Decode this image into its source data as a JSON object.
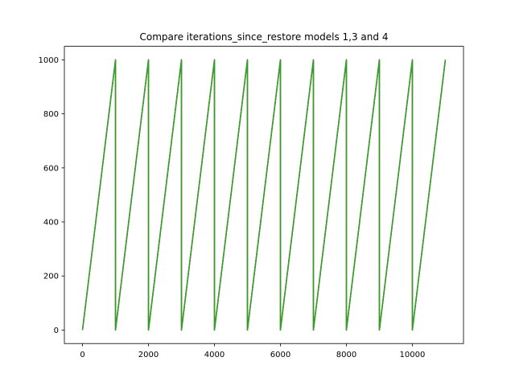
{
  "chart_data": {
    "type": "line",
    "title": "Compare iterations_since_restore models 1,3 and 4",
    "xlabel": "",
    "ylabel": "",
    "xlim": [
      -550,
      11550
    ],
    "ylim": [
      -50,
      1050
    ],
    "xticks": [
      0,
      2000,
      4000,
      6000,
      8000,
      10000
    ],
    "xtick_labels": [
      "0",
      "2000",
      "4000",
      "6000",
      "8000",
      "10000"
    ],
    "yticks": [
      0,
      200,
      400,
      600,
      800,
      1000
    ],
    "ytick_labels": [
      "0",
      "200",
      "400",
      "600",
      "800",
      "1000"
    ],
    "grid": false,
    "legend": "none",
    "series": [
      {
        "color": "#1f77b4",
        "x": [
          0,
          1000,
          1000,
          2000,
          2000,
          3000,
          3000,
          4000,
          4000,
          5000,
          5000,
          6000,
          6000,
          7000,
          7000,
          8000,
          8000,
          9000,
          9000,
          10000,
          10000,
          11000
        ],
        "y": [
          0,
          1000,
          0,
          1000,
          0,
          1000,
          0,
          1000,
          0,
          1000,
          0,
          1000,
          0,
          1000,
          0,
          1000,
          0,
          1000,
          0,
          1000,
          0,
          1000
        ]
      },
      {
        "color": "#ff7f0e",
        "x": [
          0,
          1000,
          1000,
          2000,
          2000,
          3000,
          3000,
          4000,
          4000,
          5000,
          5000,
          6000,
          6000,
          7000,
          7000,
          8000,
          8000,
          9000,
          9000,
          10000,
          10000,
          11000
        ],
        "y": [
          0,
          1000,
          0,
          1000,
          0,
          1000,
          0,
          1000,
          0,
          1000,
          0,
          1000,
          0,
          1000,
          0,
          1000,
          0,
          1000,
          0,
          1000,
          0,
          1000
        ]
      },
      {
        "color": "#2ca02c",
        "x": [
          0,
          1000,
          1000,
          2000,
          2000,
          3000,
          3000,
          4000,
          4000,
          5000,
          5000,
          6000,
          6000,
          7000,
          7000,
          8000,
          8000,
          9000,
          9000,
          10000,
          10000,
          11000
        ],
        "y": [
          0,
          1000,
          0,
          1000,
          0,
          1000,
          0,
          1000,
          0,
          1000,
          0,
          1000,
          0,
          1000,
          0,
          1000,
          0,
          1000,
          0,
          1000,
          0,
          1000
        ]
      }
    ]
  }
}
